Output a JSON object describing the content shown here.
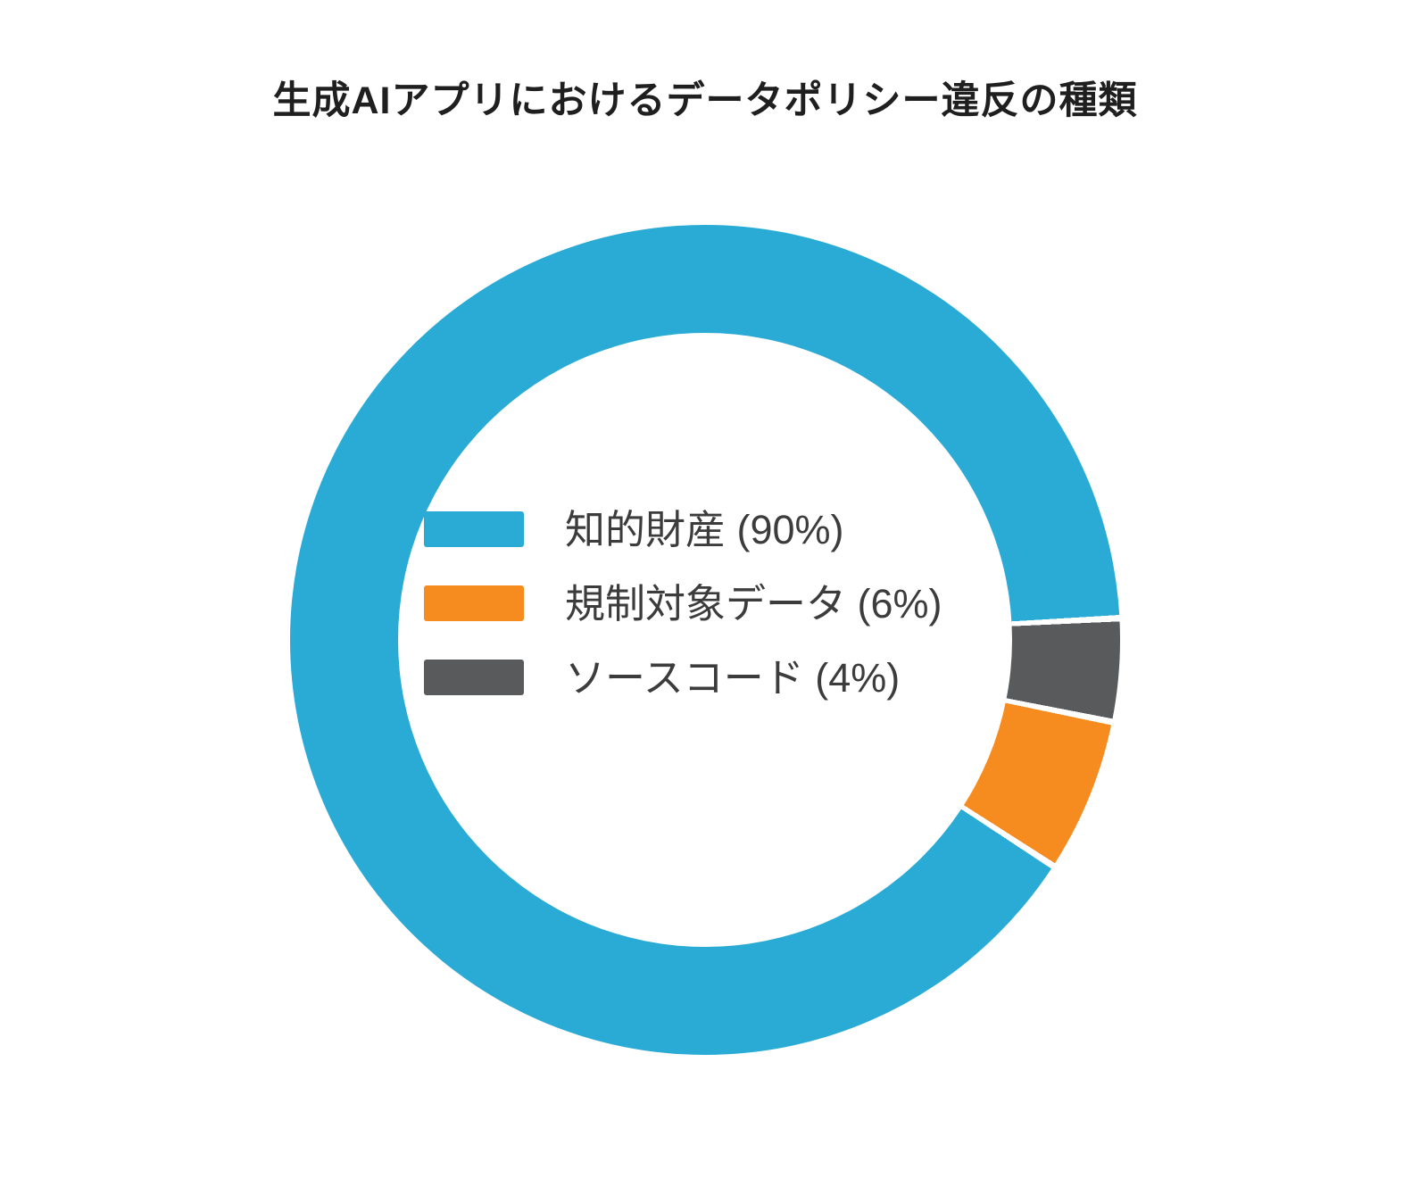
{
  "title": "生成AIアプリにおけるデータポリシー違反の種類",
  "chart_data": {
    "type": "pie",
    "subtype": "donut",
    "title": "生成AIアプリにおけるデータポリシー違反の種類",
    "categories": [
      "知的財産",
      "規制対象データ",
      "ソースコード"
    ],
    "values": [
      90,
      6,
      4
    ],
    "unit": "%",
    "colors": [
      "#29abd6",
      "#f68b1f",
      "#595a5c"
    ],
    "donut_hole_ratio": 0.74,
    "start_angle_deg": 87,
    "separator_deg": 0.9,
    "separator_color": "#ffffff",
    "legend_position": "center-inside",
    "legend": [
      {
        "label": "知的財産 (90%)",
        "color": "#29abd6"
      },
      {
        "label": "規制対象データ (6%)",
        "color": "#f68b1f"
      },
      {
        "label": "ソースコード (4%)",
        "color": "#595a5c"
      }
    ]
  }
}
